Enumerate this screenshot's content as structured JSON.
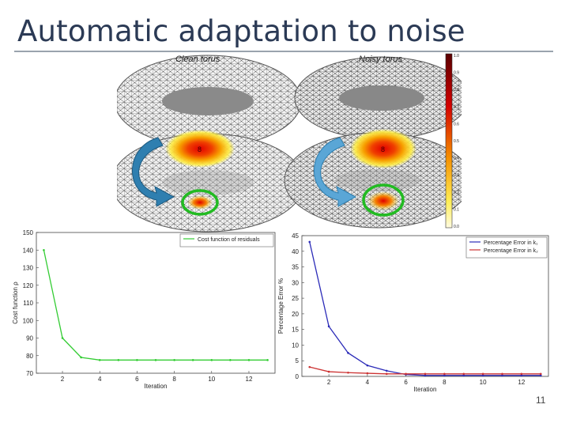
{
  "slide": {
    "title": "Automatic adaptation to noise",
    "page_number": "11"
  },
  "figure": {
    "label_clean": "Clean torus",
    "label_noisy": "Noisy torus",
    "colorbar_ticks": [
      "1.0",
      "0.9",
      "0.8",
      "0.7",
      "0.6",
      "0.5",
      "0.4",
      "0.3",
      "0.2",
      "0.1",
      "0.0"
    ],
    "colors": {
      "hot": "#e10000",
      "warm": "#f7a000",
      "cool": "#ffee44",
      "circle": "#22bb22",
      "arrow": "#2f7fb0"
    }
  },
  "chart_data": [
    {
      "type": "line",
      "xlabel": "Iteration",
      "ylabel": "Cost function ρ",
      "xlim": [
        0.6,
        13.4
      ],
      "ylim": [
        70,
        150
      ],
      "xticks": [
        2,
        4,
        6,
        8,
        10,
        12
      ],
      "yticks": [
        70,
        80,
        90,
        100,
        110,
        120,
        130,
        140,
        150
      ],
      "legend_position": "top-right",
      "series": [
        {
          "name": "Cost function of residuals",
          "color": "#33cc33",
          "x": [
            1,
            2,
            3,
            4,
            5,
            6,
            7,
            8,
            9,
            10,
            11,
            12,
            13
          ],
          "y": [
            140,
            90,
            79,
            77.5,
            77.5,
            77.5,
            77.5,
            77.5,
            77.5,
            77.5,
            77.5,
            77.5,
            77.5
          ]
        }
      ]
    },
    {
      "type": "line",
      "xlabel": "Iteration",
      "ylabel": "Percentage Error %",
      "xlim": [
        0.6,
        13.4
      ],
      "ylim": [
        0,
        45
      ],
      "xticks": [
        2,
        4,
        6,
        8,
        10,
        12
      ],
      "yticks": [
        0,
        5,
        10,
        15,
        20,
        25,
        30,
        35,
        40,
        45
      ],
      "legend_position": "top-right",
      "series": [
        {
          "name": "Percentage Error in k₁",
          "color": "#2b2bb8",
          "x": [
            1,
            2,
            3,
            4,
            5,
            6,
            7,
            8,
            9,
            10,
            11,
            12,
            13
          ],
          "y": [
            43,
            16,
            7.5,
            3.5,
            1.8,
            0.6,
            0.3,
            0.3,
            0.3,
            0.3,
            0.3,
            0.3,
            0.3
          ]
        },
        {
          "name": "Percentage Error in k₂",
          "color": "#cc3333",
          "x": [
            1,
            2,
            3,
            4,
            5,
            6,
            7,
            8,
            9,
            10,
            11,
            12,
            13
          ],
          "y": [
            3,
            1.5,
            1.2,
            1,
            0.8,
            0.8,
            0.8,
            0.8,
            0.8,
            0.8,
            0.8,
            0.8,
            0.8
          ]
        }
      ]
    }
  ]
}
